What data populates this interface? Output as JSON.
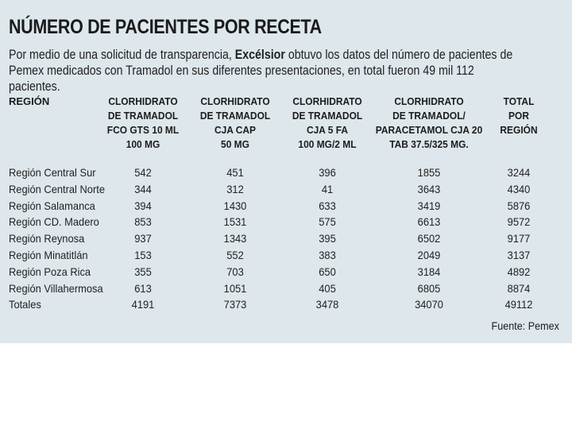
{
  "header": {
    "title": "NÚMERO DE PACIENTES POR RECETA",
    "subtitle_line1_pre": "Por medio de una solicitud de transparencia, ",
    "subtitle_brand": "Excélsior",
    "subtitle_line1_post": " obtuvo los datos del número de pacientes de",
    "subtitle_line2": "Pemex medicados con Tramadol en sus diferentes presentaciones, en total fueron 49 mil 112 pacientes."
  },
  "chart_data": {
    "type": "table",
    "columns": [
      {
        "key": "region",
        "lines": [
          "REGIÓN"
        ]
      },
      {
        "key": "fco_gts",
        "lines": [
          "CLORHIDRATO",
          "DE TRAMADOL",
          "FCO GTS 10 ML",
          "100 MG"
        ]
      },
      {
        "key": "cja_cap",
        "lines": [
          "CLORHIDRATO",
          "DE TRAMADOL",
          "CJA CAP",
          "50 MG"
        ]
      },
      {
        "key": "cja_fa",
        "lines": [
          "CLORHIDRATO",
          "DE TRAMADOL",
          "CJA 5 FA",
          "100 MG/2 ML"
        ]
      },
      {
        "key": "paracetamol",
        "lines": [
          "CLORHIDRATO",
          "DE TRAMADOL/",
          "PARACETAMOL CJA 20",
          "TAB 37.5/325 MG."
        ]
      },
      {
        "key": "total",
        "lines": [
          "TOTAL",
          "POR",
          "REGIÓN"
        ]
      }
    ],
    "rows": [
      [
        "Región Central Sur",
        "542",
        "451",
        "396",
        "1855",
        "3244"
      ],
      [
        "Región Central Norte",
        "344",
        "312",
        "41",
        "3643",
        "4340"
      ],
      [
        "Región Salamanca",
        "394",
        "1430",
        "633",
        "3419",
        "5876"
      ],
      [
        "Región CD. Madero",
        "853",
        "1531",
        "575",
        "6613",
        "9572"
      ],
      [
        "Región Reynosa",
        "937",
        "1343",
        "395",
        "6502",
        "9177"
      ],
      [
        "Región Minatitlán",
        "153",
        "552",
        "383",
        "2049",
        "3137"
      ],
      [
        "Región Poza Rica",
        "355",
        "703",
        "650",
        "3184",
        "4892"
      ],
      [
        "Región Villahermosa",
        "613",
        "1051",
        "405",
        "6805",
        "8874"
      ],
      [
        "Totales",
        "4191",
        "7373",
        "3478",
        "34070",
        "49112"
      ]
    ]
  },
  "footer": {
    "source": "Fuente: Pemex"
  },
  "colors": {
    "panel_background": "#dde7ec",
    "text": "#1c1c1c"
  }
}
